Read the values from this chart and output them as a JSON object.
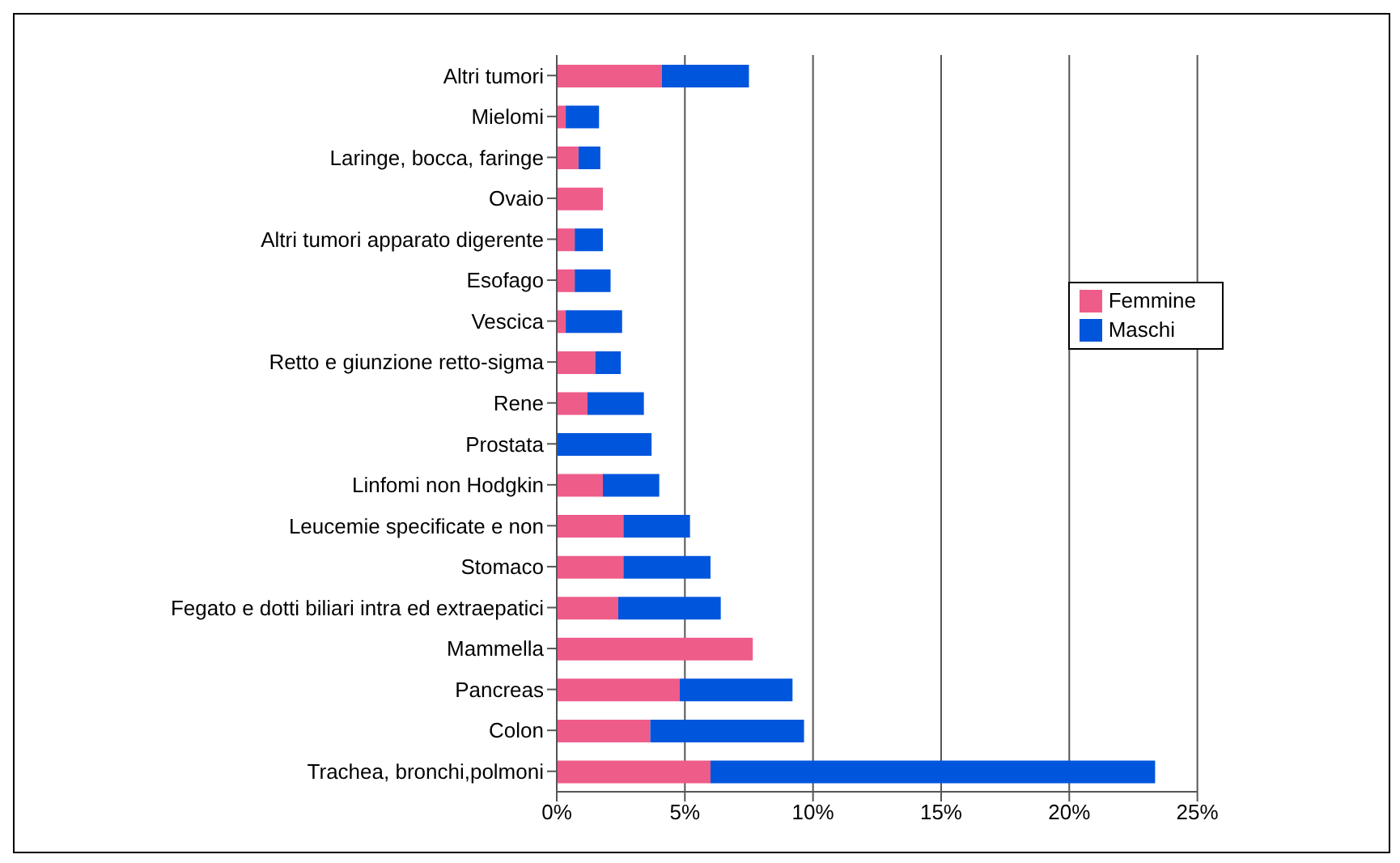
{
  "chart_data": {
    "type": "bar",
    "orientation": "horizontal",
    "stacked": true,
    "categories": [
      "Altri tumori",
      "Mielomi",
      "Laringe, bocca, faringe",
      "Ovaio",
      "Altri tumori apparato digerente",
      "Esofago",
      "Vescica",
      "Retto e giunzione retto-sigma",
      "Rene",
      "Prostata",
      "Linfomi non Hodgkin",
      "Leucemie specificate e non",
      "Stomaco",
      "Fegato e dotti biliari intra ed extraepatici",
      "Mammella",
      "Pancreas",
      "Colon",
      "Trachea, bronchi,polmoni"
    ],
    "series": [
      {
        "name": "Femmine",
        "color": "#ee5c8a",
        "values": [
          4.1,
          0.35,
          0.85,
          1.8,
          0.7,
          0.7,
          0.35,
          1.5,
          1.2,
          0,
          1.8,
          2.6,
          2.6,
          2.4,
          7.65,
          4.8,
          3.65,
          6.0
        ]
      },
      {
        "name": "Maschi",
        "color": "#0055dd",
        "values": [
          3.4,
          1.3,
          0.85,
          0,
          1.1,
          1.4,
          2.2,
          1.0,
          2.2,
          3.7,
          2.2,
          2.6,
          3.4,
          4.0,
          0,
          4.4,
          6.0,
          17.35
        ]
      }
    ],
    "xlim": [
      0,
      25
    ],
    "xticks": [
      {
        "value": 0,
        "label": "0%"
      },
      {
        "value": 5,
        "label": "5%"
      },
      {
        "value": 10,
        "label": "10%"
      },
      {
        "value": 15,
        "label": "15%"
      },
      {
        "value": 20,
        "label": "20%"
      },
      {
        "value": 25,
        "label": "25%"
      }
    ],
    "grid": "x",
    "legend": "right"
  }
}
